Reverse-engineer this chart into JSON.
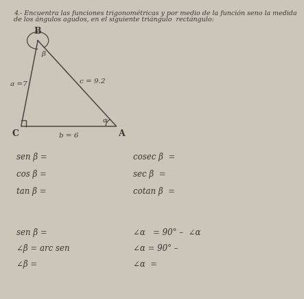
{
  "title_line1": "4.- Encuentra las funciones trigonométricas y por medio de la función seno la medida",
  "title_line2": "de los ángulos agudos, en el siguiente triángulo  rectángulo:",
  "triangle": {
    "B": [
      0.13,
      0.88
    ],
    "C": [
      0.06,
      0.58
    ],
    "A": [
      0.46,
      0.58
    ],
    "label_B": "B",
    "label_C": "C",
    "label_A": "A",
    "label_beta": "β",
    "label_alpha": "α",
    "side_a": "a =7",
    "side_b": "b = 6",
    "side_c": "c = 9.2"
  },
  "left_formulas": [
    "sen β =",
    "cos β =",
    "tan β ="
  ],
  "right_formulas": [
    "cosec β  =",
    "sec β  =",
    "cotan β  ="
  ],
  "bottom_left": [
    "sen β =",
    "∠β = arc sen",
    "∠β ="
  ],
  "bottom_right": [
    "∠α   = 90° –  ∠α",
    "∠α = 90° –",
    "∠α  ="
  ],
  "bg_color": "#ccc5ba",
  "text_color": "#3a3530",
  "title_fontsize": 6.8,
  "formula_fontsize": 8.5
}
